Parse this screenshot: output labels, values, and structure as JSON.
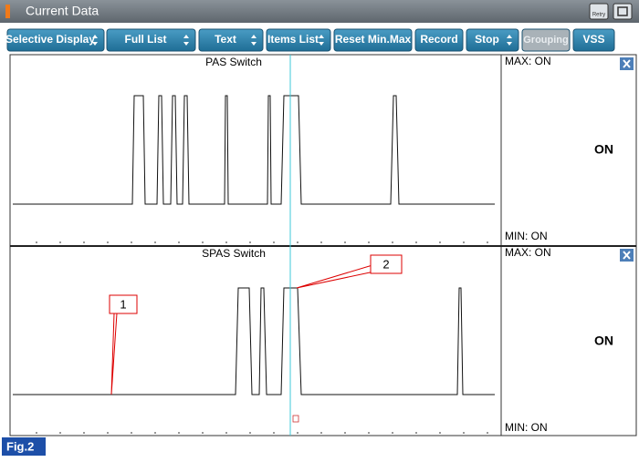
{
  "window": {
    "title": "Current Data",
    "retry": "Retry"
  },
  "toolbar": {
    "buttons": [
      "Selective Display",
      "Full List",
      "Text",
      "Items List",
      "Reset Min.Max",
      "Record",
      "Stop",
      "Grouping",
      "VSS"
    ]
  },
  "panels": [
    {
      "title": "PAS Switch",
      "max": "MAX: ON",
      "min": "MIN: ON",
      "value": "ON"
    },
    {
      "title": "SPAS Switch",
      "max": "MAX: ON",
      "min": "MIN: ON",
      "value": "ON"
    }
  ],
  "callouts": [
    "1",
    "2"
  ],
  "figure": "Fig.2"
}
